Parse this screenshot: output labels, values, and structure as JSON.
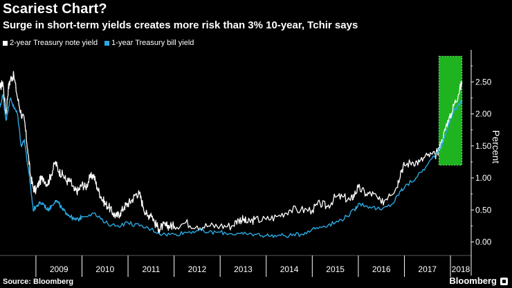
{
  "title": "Scariest Chart?",
  "subtitle": "Surge in short-term yields creates more risk than 3% 10-year, Tchir says",
  "source": "Source: Bloomberg",
  "brand": "Bloomberg",
  "colors": {
    "background": "#000000",
    "series_2yr": "#ffffff",
    "series_1yr": "#29a8e0",
    "highlight": "#1fb320",
    "highlight_border": "#7cf07a"
  },
  "chart_data": {
    "type": "line",
    "title": "Scariest Chart?",
    "subtitle": "Surge in short-term yields creates more risk than 3% 10-year, Tchir says",
    "xlabel": "",
    "ylabel": "Percent",
    "x_tick_labels": [
      "2009",
      "2010",
      "2011",
      "2012",
      "2013",
      "2014",
      "2015",
      "2016",
      "2017",
      "2018"
    ],
    "xlim": [
      2008.22,
      2018.45
    ],
    "y_tick_labels": [
      "0.00",
      "0.50",
      "1.00",
      "1.50",
      "2.00",
      "2.50"
    ],
    "yticks": [
      0,
      0.5,
      1.0,
      1.5,
      2.0,
      2.5
    ],
    "ylim": [
      -0.2,
      3.0
    ],
    "legend_position": "top-left",
    "highlight_region": {
      "x_start": 2017.75,
      "x_end": 2018.25,
      "y_start": 1.2,
      "y_end": 2.9
    },
    "series": [
      {
        "name": "2-year Treasury note yield",
        "color": "#ffffff",
        "x": [
          2008.22,
          2008.28,
          2008.35,
          2008.4,
          2008.45,
          2008.52,
          2008.6,
          2008.68,
          2008.75,
          2008.82,
          2008.88,
          2008.94,
          2009.0,
          2009.08,
          2009.16,
          2009.25,
          2009.33,
          2009.42,
          2009.5,
          2009.58,
          2009.67,
          2009.75,
          2009.83,
          2009.92,
          2010.0,
          2010.08,
          2010.17,
          2010.25,
          2010.33,
          2010.42,
          2010.5,
          2010.58,
          2010.67,
          2010.75,
          2010.83,
          2010.92,
          2011.0,
          2011.08,
          2011.17,
          2011.25,
          2011.33,
          2011.42,
          2011.5,
          2011.58,
          2011.67,
          2011.75,
          2011.83,
          2011.92,
          2012.0,
          2012.25,
          2012.5,
          2012.75,
          2013.0,
          2013.25,
          2013.4,
          2013.5,
          2013.6,
          2013.75,
          2014.0,
          2014.25,
          2014.5,
          2014.75,
          2015.0,
          2015.17,
          2015.33,
          2015.5,
          2015.67,
          2015.83,
          2015.92,
          2016.0,
          2016.17,
          2016.33,
          2016.5,
          2016.67,
          2016.83,
          2016.92,
          2017.0,
          2017.17,
          2017.33,
          2017.5,
          2017.67,
          2017.75,
          2017.83,
          2017.92,
          2018.0,
          2018.08,
          2018.17,
          2018.25
        ],
        "values": [
          2.4,
          2.5,
          2.0,
          2.4,
          2.55,
          2.6,
          2.25,
          2.0,
          1.9,
          1.45,
          1.05,
          0.85,
          0.8,
          0.95,
          1.0,
          0.9,
          1.05,
          1.25,
          1.1,
          1.05,
          0.95,
          0.95,
          0.8,
          0.8,
          0.9,
          0.85,
          1.0,
          1.05,
          0.85,
          0.7,
          0.6,
          0.55,
          0.45,
          0.4,
          0.45,
          0.55,
          0.6,
          0.65,
          0.75,
          0.75,
          0.55,
          0.4,
          0.45,
          0.3,
          0.2,
          0.25,
          0.25,
          0.25,
          0.25,
          0.3,
          0.25,
          0.25,
          0.25,
          0.25,
          0.35,
          0.35,
          0.3,
          0.35,
          0.35,
          0.4,
          0.5,
          0.5,
          0.5,
          0.6,
          0.55,
          0.7,
          0.7,
          0.65,
          0.75,
          0.85,
          0.75,
          0.75,
          0.6,
          0.75,
          0.85,
          1.1,
          1.2,
          1.25,
          1.25,
          1.35,
          1.35,
          1.45,
          1.6,
          1.85,
          1.95,
          2.15,
          2.3,
          2.5
        ]
      },
      {
        "name": "1-year Treasury bill yield",
        "color": "#29a8e0",
        "x": [
          2008.22,
          2008.28,
          2008.35,
          2008.4,
          2008.45,
          2008.52,
          2008.6,
          2008.68,
          2008.75,
          2008.82,
          2008.88,
          2008.94,
          2009.0,
          2009.08,
          2009.16,
          2009.25,
          2009.33,
          2009.42,
          2009.5,
          2009.58,
          2009.67,
          2009.75,
          2009.83,
          2009.92,
          2010.0,
          2010.25,
          2010.5,
          2010.75,
          2011.0,
          2011.25,
          2011.5,
          2011.75,
          2012.0,
          2012.25,
          2012.5,
          2012.75,
          2013.0,
          2013.25,
          2013.5,
          2013.75,
          2014.0,
          2014.25,
          2014.5,
          2014.75,
          2015.0,
          2015.25,
          2015.5,
          2015.75,
          2015.92,
          2016.0,
          2016.25,
          2016.5,
          2016.75,
          2016.92,
          2017.0,
          2017.25,
          2017.5,
          2017.75,
          2017.83,
          2017.92,
          2018.0,
          2018.08,
          2018.17,
          2018.25
        ],
        "values": [
          2.1,
          2.3,
          1.9,
          2.1,
          2.25,
          2.1,
          2.0,
          1.5,
          1.6,
          1.2,
          0.9,
          0.5,
          0.55,
          0.6,
          0.6,
          0.5,
          0.55,
          0.65,
          0.6,
          0.5,
          0.45,
          0.4,
          0.35,
          0.35,
          0.4,
          0.45,
          0.3,
          0.25,
          0.3,
          0.25,
          0.2,
          0.12,
          0.12,
          0.15,
          0.18,
          0.15,
          0.15,
          0.13,
          0.12,
          0.12,
          0.1,
          0.1,
          0.1,
          0.12,
          0.2,
          0.25,
          0.3,
          0.4,
          0.5,
          0.6,
          0.55,
          0.5,
          0.6,
          0.8,
          0.85,
          1.0,
          1.2,
          1.45,
          1.55,
          1.75,
          1.9,
          2.05,
          2.15,
          2.2
        ]
      }
    ]
  }
}
